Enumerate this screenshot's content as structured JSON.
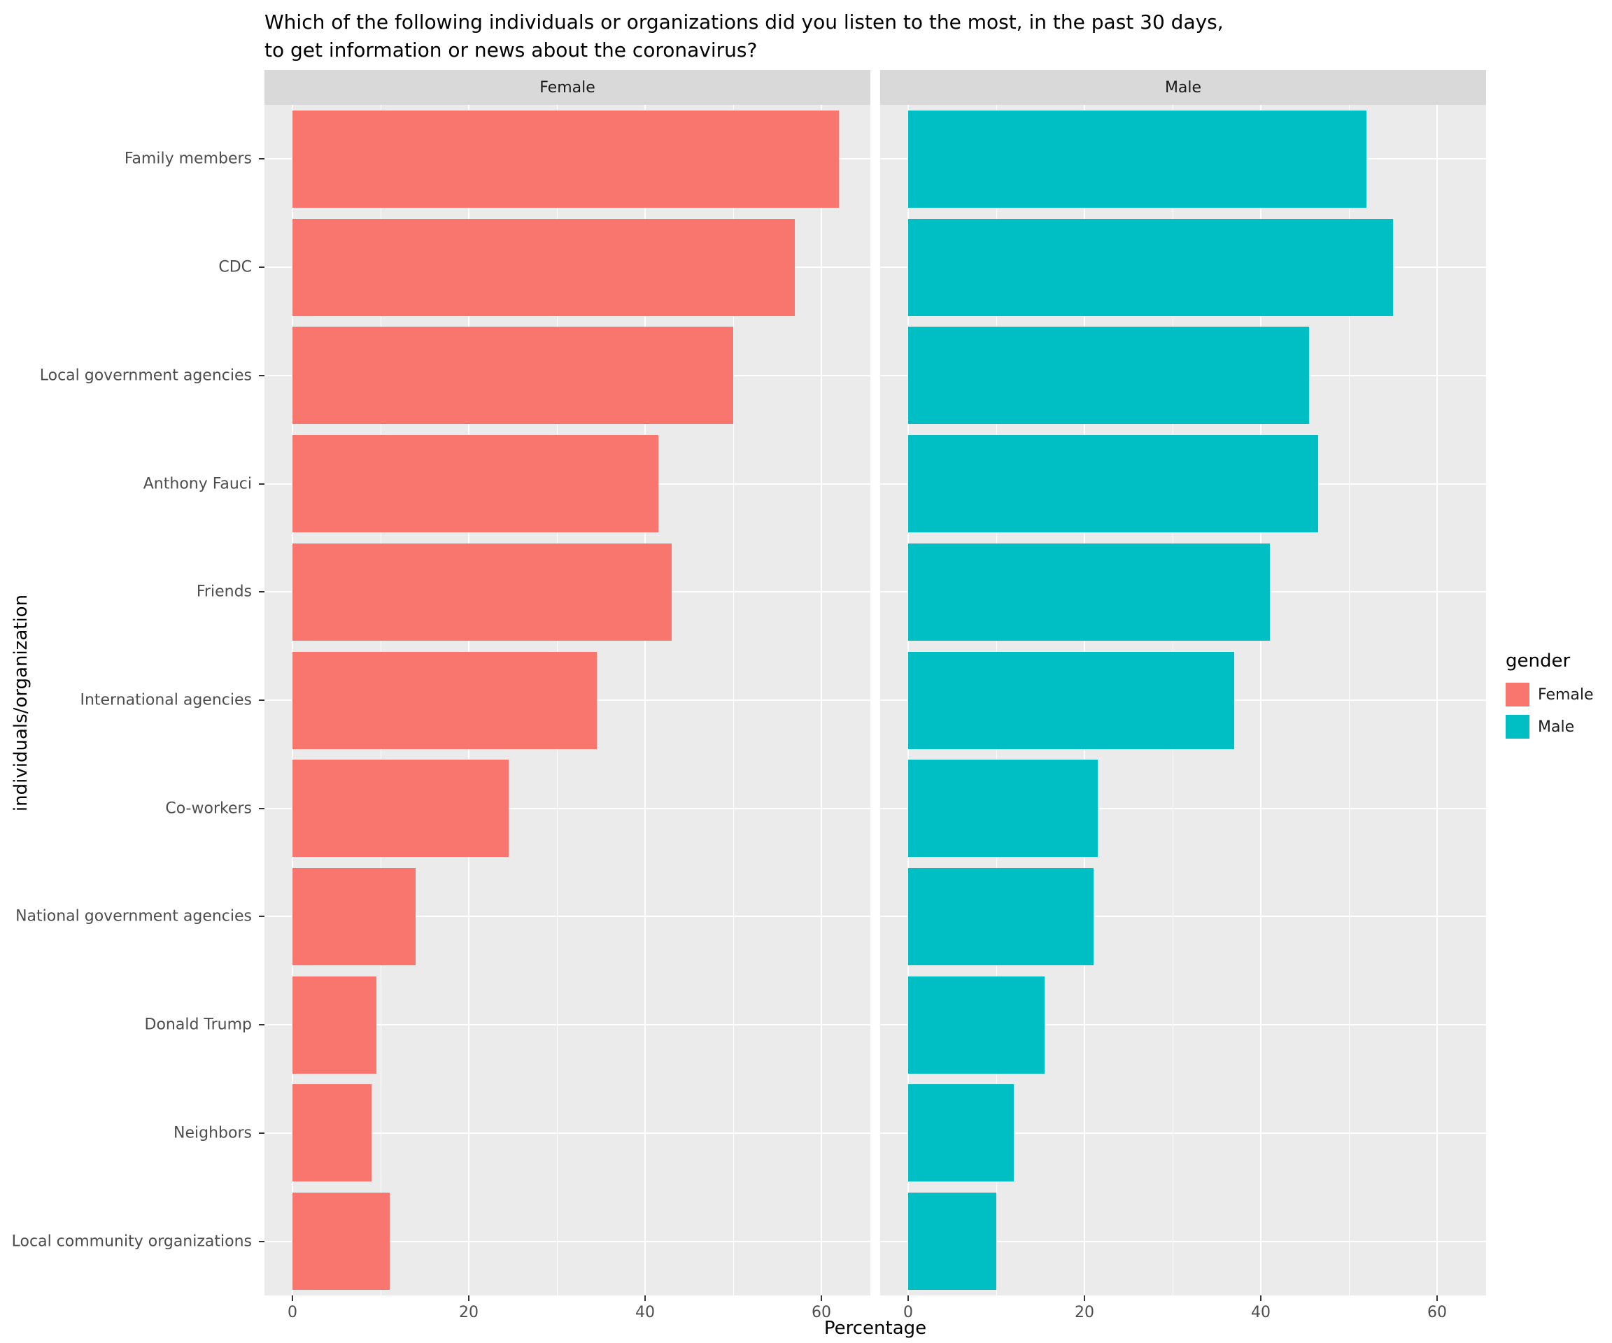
{
  "chart_data": {
    "type": "bar",
    "orientation": "horizontal",
    "title": "Which of the following individuals or organizations did you listen to the most, in the past 30 days,\nto get information or news about the coronavirus?",
    "xlabel": "Percentage",
    "ylabel": "individuals/organization",
    "facets": [
      "Female",
      "Male"
    ],
    "categories": [
      "Family members",
      "CDC",
      "Local government agencies",
      "Anthony Fauci",
      "Friends",
      "International agencies",
      "Co-workers",
      "National government agencies",
      "Donald Trump",
      "Neighbors",
      "Local community organizations"
    ],
    "series": [
      {
        "name": "Female",
        "color": "#F8766D",
        "values": [
          62,
          57,
          50,
          41.5,
          43,
          34.5,
          24.5,
          14,
          9.5,
          9,
          11
        ]
      },
      {
        "name": "Male",
        "color": "#00BFC4",
        "values": [
          52,
          55,
          45.5,
          46.5,
          41,
          37,
          21.5,
          21,
          15.5,
          12,
          10
        ]
      }
    ],
    "xlim": [
      0,
      65
    ],
    "xticks": [
      0,
      20,
      40,
      60
    ],
    "xticks_minor": [
      10,
      30,
      50
    ],
    "grid": true,
    "legend": {
      "title": "gender",
      "position": "right",
      "entries": [
        {
          "label": "Female",
          "color": "#F8766D"
        },
        {
          "label": "Male",
          "color": "#00BFC4"
        }
      ]
    },
    "colors": {
      "panel_bg": "#EBEBEB",
      "strip_bg": "#D9D9D9",
      "grid": "#FFFFFF",
      "tick": "#333333",
      "axis_text": "#4D4D4D"
    }
  }
}
